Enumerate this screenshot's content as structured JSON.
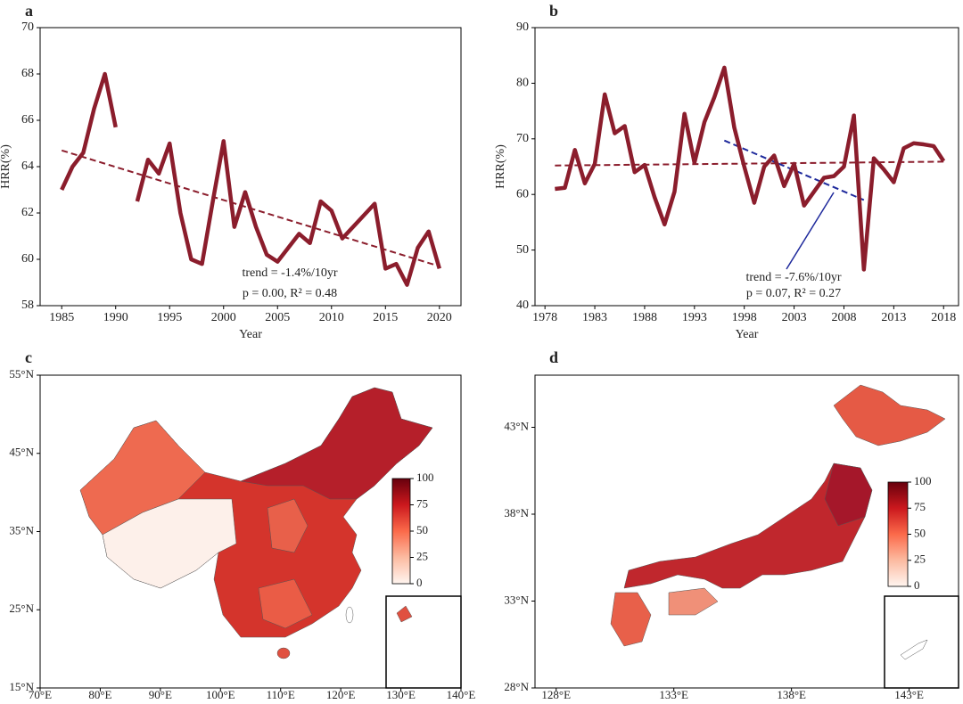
{
  "chart_data": [
    {
      "type": "line",
      "panel_label": "a",
      "xlabel": "Year",
      "ylabel": "HRR(%)",
      "x": [
        1985,
        1986,
        1987,
        1988,
        1989,
        1990,
        1991,
        1992,
        1993,
        1994,
        1995,
        1996,
        1997,
        1998,
        1999,
        2000,
        2001,
        2002,
        2003,
        2004,
        2005,
        2006,
        2007,
        2008,
        2009,
        2010,
        2011,
        2012,
        2013,
        2014,
        2015,
        2016,
        2017,
        2018,
        2019,
        2020
      ],
      "series": [
        {
          "color": "#8b1d2c",
          "values": [
            63.0,
            64.0,
            64.6,
            66.5,
            68.0,
            65.7,
            null,
            62.5,
            64.3,
            63.7,
            65.0,
            62.0,
            60.0,
            59.8,
            62.5,
            65.1,
            61.4,
            62.9,
            61.4,
            60.2,
            59.9,
            60.5,
            61.1,
            60.7,
            62.5,
            62.1,
            60.9,
            61.4,
            61.9,
            62.4,
            59.6,
            59.8,
            58.9,
            60.5,
            61.2,
            59.6
          ]
        }
      ],
      "trend_lines": [
        {
          "color": "#8b1d2c",
          "x": [
            1985,
            2020
          ],
          "values": [
            64.7,
            59.7
          ]
        }
      ],
      "annotations": [
        "trend = -1.4%/10yr",
        "p = 0.00,   R² = 0.48"
      ],
      "annotation_color": "#222222",
      "xlim": [
        1983,
        2022
      ],
      "ylim": [
        58,
        70
      ],
      "xticks": [
        1985,
        1990,
        1995,
        2000,
        2005,
        2010,
        2015,
        2020
      ],
      "yticks": [
        58,
        60,
        62,
        64,
        66,
        68,
        70
      ]
    },
    {
      "type": "line",
      "panel_label": "b",
      "xlabel": "Year",
      "ylabel": "HRR(%)",
      "x": [
        1979,
        1980,
        1981,
        1982,
        1983,
        1984,
        1985,
        1986,
        1987,
        1988,
        1989,
        1990,
        1991,
        1992,
        1993,
        1994,
        1995,
        1996,
        1997,
        1998,
        1999,
        2000,
        2001,
        2002,
        2003,
        2004,
        2005,
        2006,
        2007,
        2008,
        2009,
        2010,
        2011,
        2012,
        2013,
        2014,
        2015,
        2016,
        2017,
        2018
      ],
      "series": [
        {
          "color": "#8b1d2c",
          "values": [
            61,
            61.2,
            68,
            62,
            65.5,
            78,
            71,
            72.3,
            64,
            65.3,
            59.5,
            54.6,
            60.5,
            74.5,
            65.7,
            73,
            77.5,
            82.8,
            72,
            65,
            58.5,
            65,
            67,
            61.5,
            65.5,
            58,
            60.5,
            63,
            63.3,
            65,
            74.2,
            46.5,
            66.5,
            64.5,
            62.2,
            68.3,
            69.2,
            69,
            68.7,
            66
          ]
        }
      ],
      "trend_lines": [
        {
          "color": "#8b1d2c",
          "x": [
            1979,
            2018
          ],
          "values": [
            65.2,
            65.9
          ]
        },
        {
          "color": "#1f2a9c",
          "x": [
            1996,
            2010
          ],
          "values": [
            69.7,
            59.0
          ]
        }
      ],
      "annotations": [
        "trend = -7.6%/10yr",
        "p = 0.07,  R² = 0.27"
      ],
      "annotation_color": "#1f2a9c",
      "xlim": [
        1977,
        2019.5
      ],
      "ylim": [
        40,
        90
      ],
      "xticks": [
        1978,
        1983,
        1988,
        1993,
        1998,
        2003,
        2008,
        2013,
        2018
      ],
      "yticks": [
        40,
        50,
        60,
        70,
        80,
        90
      ]
    },
    {
      "type": "map",
      "panel_label": "c",
      "xlim": [
        70,
        140
      ],
      "ylim": [
        15,
        55
      ],
      "xticks": [
        {
          "value": 70,
          "label": "70°E"
        },
        {
          "value": 80,
          "label": "80°E"
        },
        {
          "value": 90,
          "label": "90°E"
        },
        {
          "value": 100,
          "label": "100°E"
        },
        {
          "value": 110,
          "label": "110°E"
        },
        {
          "value": 120,
          "label": "120°E"
        },
        {
          "value": 130,
          "label": "130°E"
        },
        {
          "value": 140,
          "label": "140°E"
        }
      ],
      "yticks": [
        {
          "value": 15,
          "label": "15°N"
        },
        {
          "value": 25,
          "label": "25°N"
        },
        {
          "value": 35,
          "label": "35°N"
        },
        {
          "value": 45,
          "label": "45°N"
        },
        {
          "value": 55,
          "label": "55°N"
        }
      ],
      "colorbar": {
        "clim": [
          0,
          100
        ],
        "ticks": [
          0,
          25,
          50,
          75,
          100
        ]
      }
    },
    {
      "type": "map",
      "panel_label": "d",
      "xlim": [
        127.1,
        145.1
      ],
      "ylim": [
        28,
        46
      ],
      "xticks": [
        {
          "value": 128,
          "label": "128°E"
        },
        {
          "value": 133,
          "label": "133°E"
        },
        {
          "value": 138,
          "label": "138°E"
        },
        {
          "value": 143,
          "label": "143°E"
        }
      ],
      "yticks": [
        {
          "value": 28,
          "label": "28°N"
        },
        {
          "value": 33,
          "label": "33°N"
        },
        {
          "value": 38,
          "label": "38°N"
        },
        {
          "value": 43,
          "label": "43°N"
        }
      ],
      "colorbar": {
        "clim": [
          0,
          100
        ],
        "ticks": [
          0,
          25,
          50,
          75,
          100
        ]
      }
    }
  ]
}
